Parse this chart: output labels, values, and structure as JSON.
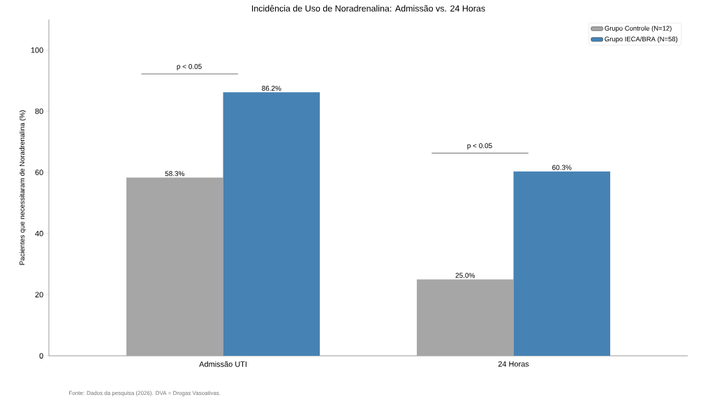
{
  "chart_data": {
    "type": "bar",
    "title": "Incidência de Uso de Noradrenalina: Admissão vs. 24 Horas",
    "ylabel": "Pacientes que necessitaram de Noradrenalina (%)",
    "categories": [
      "Admissão UTI",
      "24 Horas"
    ],
    "series": [
      {
        "name": "Grupo Controle (N=12)",
        "color": "#a6a6a6",
        "values": [
          58.3,
          25.0
        ],
        "value_labels": [
          "58.3%",
          "25.0%"
        ]
      },
      {
        "name": "Grupo IECA/BRA (N=58)",
        "color": "#4682b4",
        "values": [
          86.2,
          60.3
        ],
        "value_labels": [
          "86.2%",
          "60.3%"
        ]
      }
    ],
    "ylim": [
      0,
      110
    ],
    "yticks": [
      0,
      20,
      40,
      60,
      80,
      100
    ],
    "grid": false,
    "legend": "top right",
    "annotations": [
      "p < 0.05",
      "p < 0.05",
      "Fonte: Dados da pesquisa (2026). DVA = Drogas Vasoativas."
    ]
  }
}
